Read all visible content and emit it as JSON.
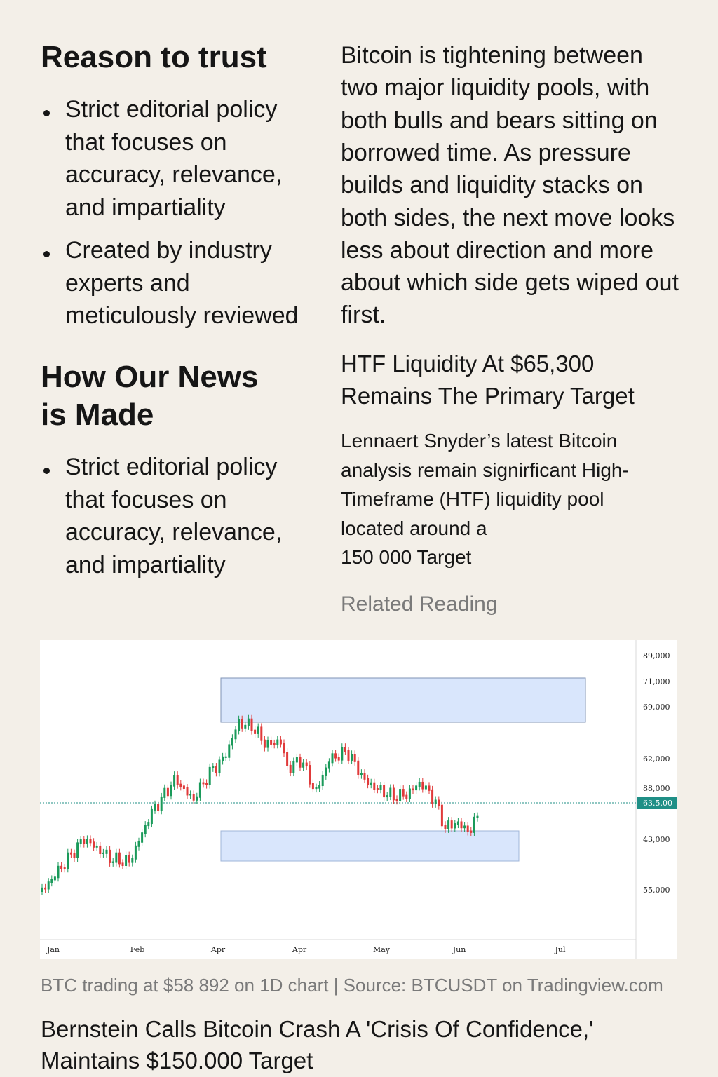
{
  "left": {
    "sections": [
      {
        "heading": "Reason to trust",
        "bullets": [
          [
            "Strict editorial policy",
            "that focuses on",
            "accuracy, relevance,",
            "and impartiality"
          ],
          [
            "Created by industry",
            "experts and",
            "meticulously reviewed"
          ]
        ]
      },
      {
        "heading": [
          "How Our News",
          "is Made"
        ],
        "bullets": [
          [
            "Strict editorial policy",
            "that focuses on",
            "accuracy, relevance,",
            "and impartiality"
          ]
        ]
      }
    ]
  },
  "right": {
    "intro": [
      "Bitcoin is tightening between",
      "two major liquidity pools, with",
      "both bulls and bears sitting on",
      "borrowed time. As pressure",
      "builds and liquidity stacks on",
      "both sides, the next move looks",
      "less about direction and more",
      "about which side gets wiped out",
      "first."
    ],
    "subheading": [
      "HTF Liquidity At $65,300",
      "Remains The Primary Target"
    ],
    "paragraph": [
      "Lennaert Snyder’s latest Bitcoin",
      "analysis remain signirficant High-",
      "Timeframe (HTF) liquidity pool",
      "located around a",
      "150 000 Target"
    ],
    "related": "Related Reading"
  },
  "chart": {
    "y_labels": [
      "89,000",
      "71,000",
      "69,000",
      "62,000",
      "88,000",
      "43,000",
      "55,000"
    ],
    "price_tag": "63.5.00",
    "x_labels": [
      "Jan",
      "Feb",
      "Apr",
      "Apr",
      "May",
      "Jun",
      "Jul"
    ]
  },
  "caption": "BTC trading at $58 892 on 1D chart | Source: BTCUSDT on Tradingview.com",
  "headline": [
    "Bernstein Calls Bitcoin Crash A 'Crisis Of Confidence,'",
    "Maintains $150.000 Target"
  ]
}
